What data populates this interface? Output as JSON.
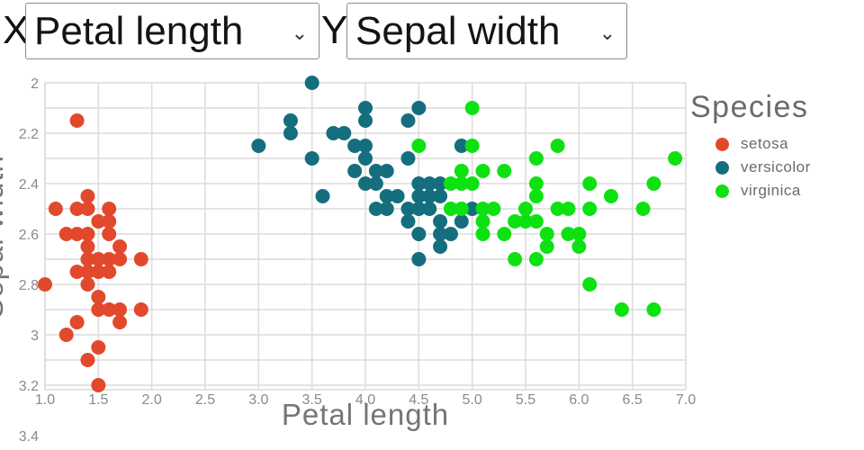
{
  "controls": {
    "x_label": "X:",
    "x_value": "Petal length",
    "y_label": "Y:",
    "y_value": "Sepal width"
  },
  "icons": {
    "chevron_down": "⌄"
  },
  "colors": {
    "grid": "#dcdcdc",
    "axis_tick_text": "#8a8a8a",
    "axis_title_text": "#757575",
    "legend_text": "#6b6b6b",
    "select_border": "#8a8a8a"
  },
  "chart_data": {
    "type": "scatter",
    "xlabel": "Petal length",
    "ylabel": "Sepal width",
    "legend_title": "Species",
    "legend_position": "right",
    "grid": true,
    "x_axis": {
      "min": 1.0,
      "max": 7.0,
      "tick_values": [
        1.0,
        1.5,
        2.0,
        2.5,
        3.0,
        3.5,
        4.0,
        4.5,
        5.0,
        5.5,
        6.0,
        6.5,
        7.0
      ],
      "tick_labels": [
        "1.0",
        "1.5",
        "2.0",
        "2.5",
        "3.0",
        "3.5",
        "4.0",
        "4.5",
        "5.0",
        "5.5",
        "6.0",
        "6.5",
        "7.0"
      ]
    },
    "y_axis": {
      "min": 2.0,
      "max": 3.4,
      "reversed": true,
      "visible_max": 3.2,
      "grid_step": 0.1,
      "tick_values": [
        2.0,
        2.2,
        2.4,
        2.6,
        2.8,
        3.0,
        3.2,
        3.4
      ],
      "tick_labels": [
        "2",
        "2.2",
        "2.4",
        "2.6",
        "2.8",
        "3",
        "3.2",
        "3.4"
      ]
    },
    "series": [
      {
        "name": "setosa",
        "color": "#e2492c",
        "points": [
          [
            1.3,
            2.15
          ],
          [
            1.4,
            2.45
          ],
          [
            1.1,
            2.5
          ],
          [
            1.3,
            2.5
          ],
          [
            1.4,
            2.5
          ],
          [
            1.6,
            2.5
          ],
          [
            1.5,
            2.55
          ],
          [
            1.6,
            2.55
          ],
          [
            1.2,
            2.6
          ],
          [
            1.3,
            2.6
          ],
          [
            1.4,
            2.6
          ],
          [
            1.6,
            2.6
          ],
          [
            1.4,
            2.65
          ],
          [
            1.7,
            2.65
          ],
          [
            1.4,
            2.7
          ],
          [
            1.5,
            2.7
          ],
          [
            1.6,
            2.7
          ],
          [
            1.7,
            2.7
          ],
          [
            1.9,
            2.7
          ],
          [
            1.3,
            2.75
          ],
          [
            1.4,
            2.75
          ],
          [
            1.5,
            2.75
          ],
          [
            1.6,
            2.75
          ],
          [
            1.0,
            2.8
          ],
          [
            1.4,
            2.8
          ],
          [
            1.5,
            2.85
          ],
          [
            1.5,
            2.9
          ],
          [
            1.6,
            2.9
          ],
          [
            1.7,
            2.9
          ],
          [
            1.9,
            2.9
          ],
          [
            1.3,
            2.95
          ],
          [
            1.7,
            2.95
          ],
          [
            1.2,
            3.0
          ],
          [
            1.5,
            3.05
          ],
          [
            1.4,
            3.1
          ],
          [
            1.5,
            3.2
          ]
        ]
      },
      {
        "name": "versicolor",
        "color": "#156e7d",
        "points": [
          [
            3.5,
            2.0
          ],
          [
            4.0,
            2.1
          ],
          [
            4.5,
            2.1
          ],
          [
            3.3,
            2.15
          ],
          [
            4.0,
            2.15
          ],
          [
            4.4,
            2.15
          ],
          [
            3.3,
            2.2
          ],
          [
            3.7,
            2.2
          ],
          [
            3.8,
            2.2
          ],
          [
            3.0,
            2.25
          ],
          [
            3.9,
            2.25
          ],
          [
            4.0,
            2.25
          ],
          [
            4.9,
            2.25
          ],
          [
            3.5,
            2.3
          ],
          [
            4.0,
            2.3
          ],
          [
            4.4,
            2.3
          ],
          [
            3.9,
            2.35
          ],
          [
            4.1,
            2.35
          ],
          [
            4.2,
            2.35
          ],
          [
            4.0,
            2.4
          ],
          [
            4.1,
            2.4
          ],
          [
            4.5,
            2.4
          ],
          [
            4.6,
            2.4
          ],
          [
            4.7,
            2.4
          ],
          [
            3.6,
            2.45
          ],
          [
            4.2,
            2.45
          ],
          [
            4.3,
            2.45
          ],
          [
            4.5,
            2.45
          ],
          [
            4.6,
            2.45
          ],
          [
            4.7,
            2.45
          ],
          [
            4.1,
            2.5
          ],
          [
            4.2,
            2.5
          ],
          [
            4.4,
            2.5
          ],
          [
            4.5,
            2.5
          ],
          [
            4.6,
            2.5
          ],
          [
            5.0,
            2.5
          ],
          [
            4.4,
            2.55
          ],
          [
            4.7,
            2.55
          ],
          [
            4.9,
            2.55
          ],
          [
            4.5,
            2.6
          ],
          [
            4.7,
            2.6
          ],
          [
            4.8,
            2.6
          ],
          [
            4.7,
            2.65
          ],
          [
            4.5,
            2.7
          ]
        ]
      },
      {
        "name": "virginica",
        "color": "#0ee112",
        "points": [
          [
            5.0,
            2.1
          ],
          [
            4.5,
            2.25
          ],
          [
            5.0,
            2.25
          ],
          [
            5.8,
            2.25
          ],
          [
            5.6,
            2.3
          ],
          [
            6.9,
            2.3
          ],
          [
            4.9,
            2.35
          ],
          [
            5.1,
            2.35
          ],
          [
            5.3,
            2.35
          ],
          [
            4.8,
            2.4
          ],
          [
            4.9,
            2.4
          ],
          [
            5.0,
            2.4
          ],
          [
            5.6,
            2.4
          ],
          [
            6.1,
            2.4
          ],
          [
            6.7,
            2.4
          ],
          [
            5.6,
            2.45
          ],
          [
            6.3,
            2.45
          ],
          [
            4.8,
            2.5
          ],
          [
            4.9,
            2.5
          ],
          [
            5.1,
            2.5
          ],
          [
            5.2,
            2.5
          ],
          [
            5.5,
            2.5
          ],
          [
            5.8,
            2.5
          ],
          [
            5.9,
            2.5
          ],
          [
            6.1,
            2.5
          ],
          [
            6.6,
            2.5
          ],
          [
            5.1,
            2.55
          ],
          [
            5.4,
            2.55
          ],
          [
            5.5,
            2.55
          ],
          [
            5.6,
            2.55
          ],
          [
            5.1,
            2.6
          ],
          [
            5.3,
            2.6
          ],
          [
            5.7,
            2.6
          ],
          [
            5.9,
            2.6
          ],
          [
            6.0,
            2.6
          ],
          [
            5.7,
            2.65
          ],
          [
            6.0,
            2.65
          ],
          [
            5.4,
            2.7
          ],
          [
            5.6,
            2.7
          ],
          [
            6.1,
            2.8
          ],
          [
            6.4,
            2.9
          ],
          [
            6.7,
            2.9
          ]
        ]
      }
    ]
  }
}
